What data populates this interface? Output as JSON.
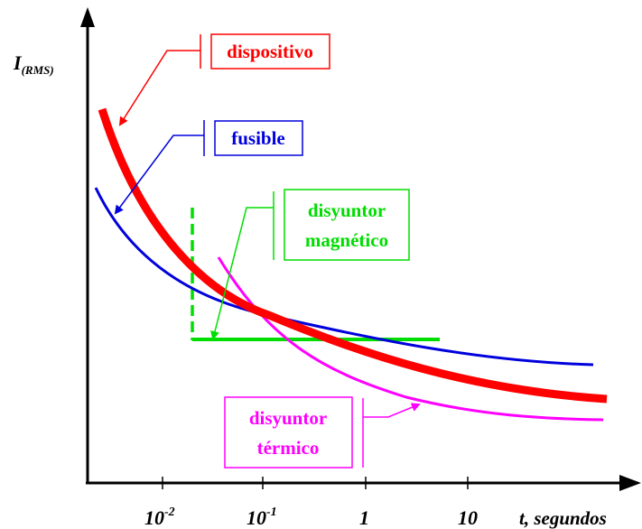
{
  "axes": {
    "y_label_main": "I",
    "y_label_sub": "(RMS)",
    "x_label": "t, segundos",
    "x_ticks": [
      {
        "base": "10",
        "exp": "-2"
      },
      {
        "base": "10",
        "exp": "-1"
      },
      {
        "base": "1",
        "exp": ""
      },
      {
        "base": "10",
        "exp": ""
      }
    ]
  },
  "labels": {
    "dispositivo": "dispositivo",
    "fusible": "fusible",
    "magnetico_line1": "disyuntor",
    "magnetico_line2": "magnético",
    "termico_line1": "disyuntor",
    "termico_line2": "térmico"
  },
  "colors": {
    "dispositivo": "#ff0000",
    "fusible": "#0000dd",
    "magnetico": "#00dd00",
    "termico": "#ff00ff",
    "axis": "#000000"
  }
}
